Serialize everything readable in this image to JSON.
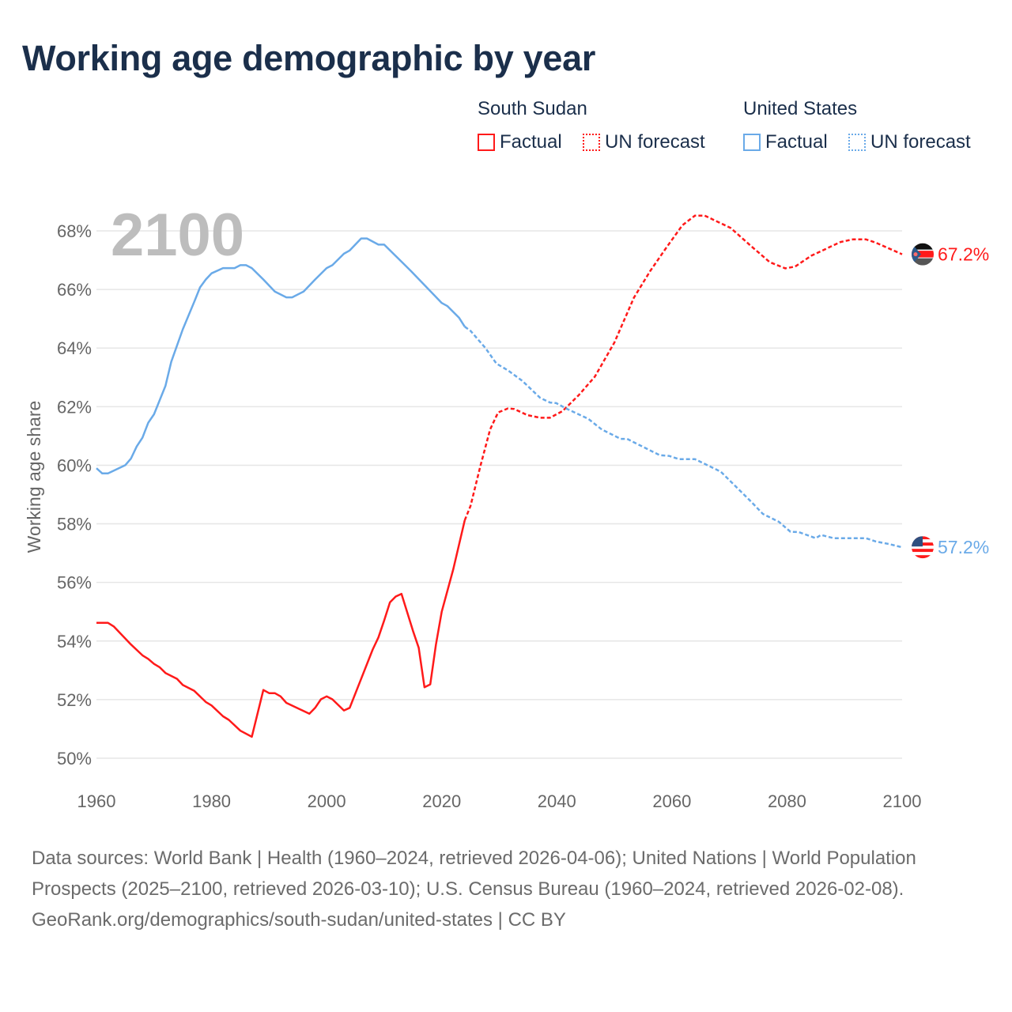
{
  "title": "Working age demographic by year",
  "legend": {
    "groups": [
      {
        "name": "South Sudan",
        "color": "#ff1a1a",
        "factual_label": "Factual",
        "forecast_label": "UN forecast"
      },
      {
        "name": "United States",
        "color": "#6aaae8",
        "factual_label": "Factual",
        "forecast_label": "UN forecast"
      }
    ]
  },
  "chart_data": {
    "type": "line",
    "title": "Working age demographic by year",
    "xlabel": "",
    "ylabel": "Working age share",
    "xlim": [
      1960,
      2100
    ],
    "ylim": [
      50,
      68
    ],
    "x_ticks": [
      "1960",
      "1980",
      "2000",
      "2020",
      "2040",
      "2060",
      "2080",
      "2100"
    ],
    "y_ticks": [
      "50%",
      "52%",
      "54%",
      "56%",
      "58%",
      "60%",
      "62%",
      "64%",
      "66%",
      "68%"
    ],
    "y_tick_values": [
      50,
      52,
      54,
      56,
      58,
      60,
      62,
      64,
      66,
      68
    ],
    "x_tick_values": [
      1960,
      1980,
      2000,
      2020,
      2040,
      2060,
      2080,
      2100
    ],
    "grid": true,
    "year_watermark": "2100",
    "series": [
      {
        "name": "South Sudan",
        "color": "#ff1a1a",
        "end_label": "67.2%",
        "factual": [
          [
            1960,
            54.62
          ],
          [
            1962,
            54.62
          ],
          [
            1963,
            54.5
          ],
          [
            1966,
            53.88
          ],
          [
            1968,
            53.51
          ],
          [
            1969,
            53.39
          ],
          [
            1970,
            53.22
          ],
          [
            1971,
            53.1
          ],
          [
            1972,
            52.91
          ],
          [
            1974,
            52.71
          ],
          [
            1975,
            52.5
          ],
          [
            1977,
            52.3
          ],
          [
            1979,
            51.92
          ],
          [
            1980,
            51.8
          ],
          [
            1982,
            51.43
          ],
          [
            1983,
            51.31
          ],
          [
            1985,
            50.94
          ],
          [
            1987,
            50.73
          ],
          [
            1989,
            52.33
          ],
          [
            1990,
            52.22
          ],
          [
            1991,
            52.22
          ],
          [
            1992,
            52.11
          ],
          [
            1993,
            51.89
          ],
          [
            1997,
            51.52
          ],
          [
            1998,
            51.72
          ],
          [
            1999,
            52.01
          ],
          [
            2000,
            52.11
          ],
          [
            2001,
            52.01
          ],
          [
            2003,
            51.63
          ],
          [
            2004,
            51.72
          ],
          [
            2006,
            52.71
          ],
          [
            2008,
            53.71
          ],
          [
            2009,
            54.12
          ],
          [
            2010,
            54.7
          ],
          [
            2011,
            55.32
          ],
          [
            2012,
            55.52
          ],
          [
            2013,
            55.61
          ],
          [
            2015,
            54.35
          ],
          [
            2016,
            53.77
          ],
          [
            2017,
            52.42
          ],
          [
            2018,
            52.52
          ],
          [
            2019,
            53.88
          ],
          [
            2020,
            55.0
          ],
          [
            2022,
            56.45
          ],
          [
            2024,
            58.12
          ]
        ],
        "forecast": [
          [
            2024,
            58.12
          ],
          [
            2025,
            58.61
          ],
          [
            2026.7,
            59.96
          ],
          [
            2028.4,
            61.22
          ],
          [
            2029.8,
            61.8
          ],
          [
            2031.5,
            61.94
          ],
          [
            2032.6,
            61.92
          ],
          [
            2034.9,
            61.71
          ],
          [
            2037.1,
            61.62
          ],
          [
            2038.8,
            61.62
          ],
          [
            2041,
            61.85
          ],
          [
            2043.8,
            62.39
          ],
          [
            2046.6,
            63.02
          ],
          [
            2050,
            64.19
          ],
          [
            2053.4,
            65.72
          ],
          [
            2056.2,
            66.62
          ],
          [
            2059,
            67.42
          ],
          [
            2061.8,
            68.19
          ],
          [
            2064,
            68.52
          ],
          [
            2065.7,
            68.52
          ],
          [
            2070.2,
            68.1
          ],
          [
            2073.6,
            67.51
          ],
          [
            2077,
            66.93
          ],
          [
            2079.7,
            66.72
          ],
          [
            2081.4,
            66.78
          ],
          [
            2084.2,
            67.15
          ],
          [
            2089.3,
            67.62
          ],
          [
            2091.5,
            67.71
          ],
          [
            2093.7,
            67.71
          ],
          [
            2095.4,
            67.6
          ],
          [
            2100,
            67.2
          ]
        ]
      },
      {
        "name": "United States",
        "color": "#6aaae8",
        "end_label": "57.2%",
        "factual": [
          [
            1960,
            59.9
          ],
          [
            1961,
            59.72
          ],
          [
            1962,
            59.72
          ],
          [
            1965,
            60.0
          ],
          [
            1966,
            60.23
          ],
          [
            1967,
            60.64
          ],
          [
            1968,
            60.94
          ],
          [
            1969,
            61.45
          ],
          [
            1970,
            61.74
          ],
          [
            1972,
            62.71
          ],
          [
            1973,
            63.53
          ],
          [
            1975,
            64.64
          ],
          [
            1977,
            65.58
          ],
          [
            1978,
            66.07
          ],
          [
            1979,
            66.34
          ],
          [
            1980,
            66.55
          ],
          [
            1982,
            66.73
          ],
          [
            1984,
            66.73
          ],
          [
            1985,
            66.83
          ],
          [
            1986,
            66.83
          ],
          [
            1987,
            66.73
          ],
          [
            1989,
            66.34
          ],
          [
            1991,
            65.93
          ],
          [
            1993,
            65.73
          ],
          [
            1994,
            65.73
          ],
          [
            1996,
            65.93
          ],
          [
            1998,
            66.34
          ],
          [
            2000,
            66.73
          ],
          [
            2001,
            66.83
          ],
          [
            2003,
            67.22
          ],
          [
            2004,
            67.33
          ],
          [
            2006,
            67.74
          ],
          [
            2007,
            67.74
          ],
          [
            2009,
            67.53
          ],
          [
            2010,
            67.53
          ],
          [
            2014.7,
            66.62
          ],
          [
            2020,
            65.54
          ],
          [
            2021,
            65.43
          ],
          [
            2023,
            65.04
          ],
          [
            2024,
            64.73
          ]
        ],
        "forecast": [
          [
            2024,
            64.73
          ],
          [
            2025,
            64.59
          ],
          [
            2027.6,
            64.0
          ],
          [
            2029.5,
            63.47
          ],
          [
            2031.5,
            63.24
          ],
          [
            2034,
            62.88
          ],
          [
            2037.1,
            62.3
          ],
          [
            2038.8,
            62.14
          ],
          [
            2039.9,
            62.12
          ],
          [
            2041.6,
            61.94
          ],
          [
            2045.5,
            61.58
          ],
          [
            2047.8,
            61.22
          ],
          [
            2051.1,
            60.9
          ],
          [
            2052.2,
            60.9
          ],
          [
            2057.9,
            60.34
          ],
          [
            2059.5,
            60.32
          ],
          [
            2061.2,
            60.21
          ],
          [
            2064,
            60.21
          ],
          [
            2068.5,
            59.78
          ],
          [
            2073.6,
            58.79
          ],
          [
            2075.8,
            58.34
          ],
          [
            2078.6,
            58.07
          ],
          [
            2080.6,
            57.73
          ],
          [
            2082,
            57.72
          ],
          [
            2085,
            57.51
          ],
          [
            2085.9,
            57.62
          ],
          [
            2088.1,
            57.51
          ],
          [
            2093.7,
            57.51
          ],
          [
            2095.4,
            57.4
          ],
          [
            2097.7,
            57.31
          ],
          [
            2100,
            57.2
          ]
        ]
      }
    ]
  },
  "footer": {
    "sources": "Data sources: World Bank | Health (1960–2024, retrieved 2026-04-06); United Nations | World Population Prospects (2025–2100, retrieved 2026-03-10); U.S. Census Bureau (1960–2024, retrieved 2026-02-08).",
    "link": "GeoRank.org/demographics/south-sudan/united-states",
    "license": " | CC BY"
  }
}
